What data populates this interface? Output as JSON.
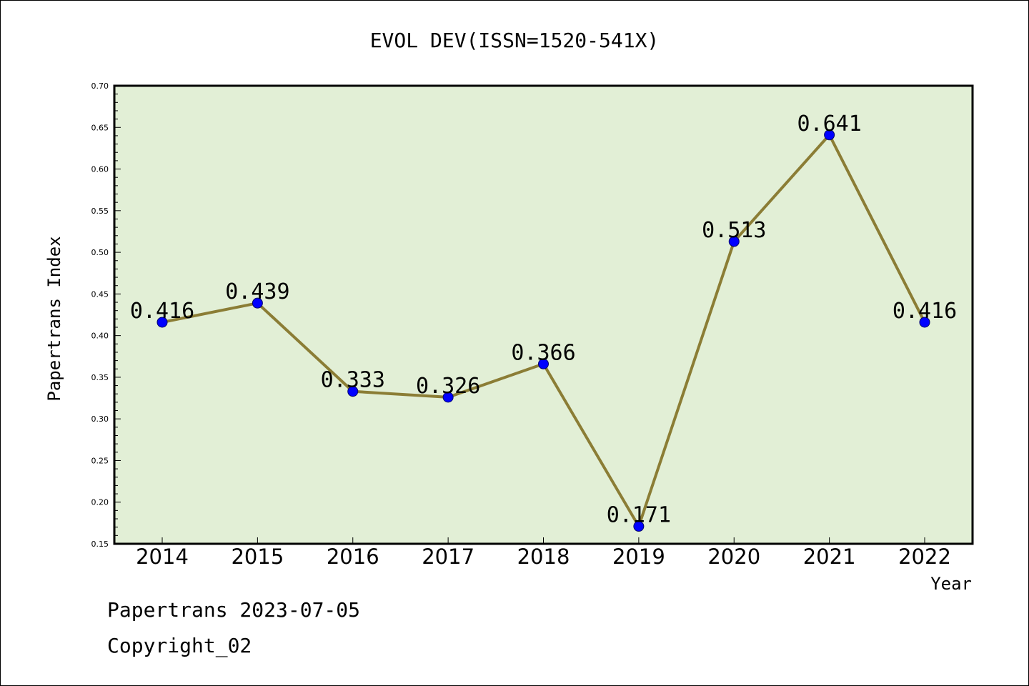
{
  "chart_data": {
    "type": "line",
    "title": "EVOL DEV(ISSN=1520-541X)",
    "xlabel": "Year",
    "ylabel": "Papertrans Index",
    "categories": [
      "2014",
      "2015",
      "2016",
      "2017",
      "2018",
      "2019",
      "2020",
      "2021",
      "2022"
    ],
    "series": [
      {
        "values": [
          0.416,
          0.439,
          0.333,
          0.326,
          0.366,
          0.171,
          0.513,
          0.641,
          0.416
        ]
      }
    ],
    "data_labels": [
      "0.416",
      "0.439",
      "0.333",
      "0.326",
      "0.366",
      "0.171",
      "0.513",
      "0.641",
      "0.416"
    ],
    "ylim": [
      0.15,
      0.7
    ],
    "yticks": [
      "0.15",
      "0.20",
      "0.25",
      "0.30",
      "0.35",
      "0.40",
      "0.45",
      "0.50",
      "0.55",
      "0.60",
      "0.65",
      "0.70"
    ],
    "grid": false,
    "colors": {
      "plot_background": "#e2efd6",
      "line": "#8b7d35",
      "marker": "#0000ff"
    }
  },
  "footer": {
    "date_line": "Papertrans 2023-07-05",
    "copyright": "Copyright_02"
  }
}
